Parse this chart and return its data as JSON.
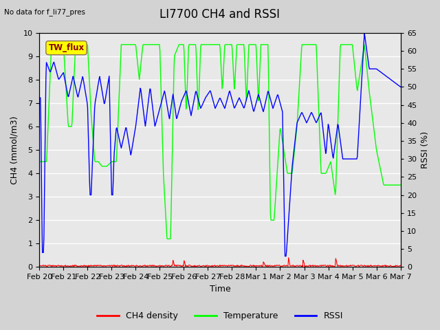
{
  "title": "LI7700 CH4 and RSSI",
  "top_left_text": "No data for f_li77_pres",
  "box_label": "TW_flux",
  "xlabel": "Time",
  "ylabel_left": "CH4 (mmol/m3)",
  "ylabel_right": "RSSI (%)",
  "ylim_left": [
    0.0,
    10.0
  ],
  "ylim_right": [
    0,
    65
  ],
  "yticks_left": [
    0.0,
    1.0,
    2.0,
    3.0,
    4.0,
    5.0,
    6.0,
    7.0,
    8.0,
    9.0,
    10.0
  ],
  "yticks_right": [
    0,
    5,
    10,
    15,
    20,
    25,
    30,
    35,
    40,
    45,
    50,
    55,
    60,
    65
  ],
  "xtick_labels": [
    "Feb 20",
    "Feb 21",
    "Feb 22",
    "Feb 23",
    "Feb 24",
    "Feb 25",
    "Feb 26",
    "Feb 27",
    "Feb 28",
    "Mar 1",
    "Mar 2",
    "Mar 3",
    "Mar 4",
    "Mar 5",
    "Mar 6",
    "Mar 7"
  ],
  "legend_labels": [
    "CH4 density",
    "Temperature",
    "RSSI"
  ],
  "legend_colors": [
    "red",
    "lime",
    "blue"
  ],
  "bg_color": "#d3d3d3",
  "plot_bg_color": "#e8e8e8",
  "grid_color": "white",
  "title_fontsize": 12,
  "label_fontsize": 9,
  "tick_fontsize": 8,
  "n_days": 15,
  "n_points": 720
}
